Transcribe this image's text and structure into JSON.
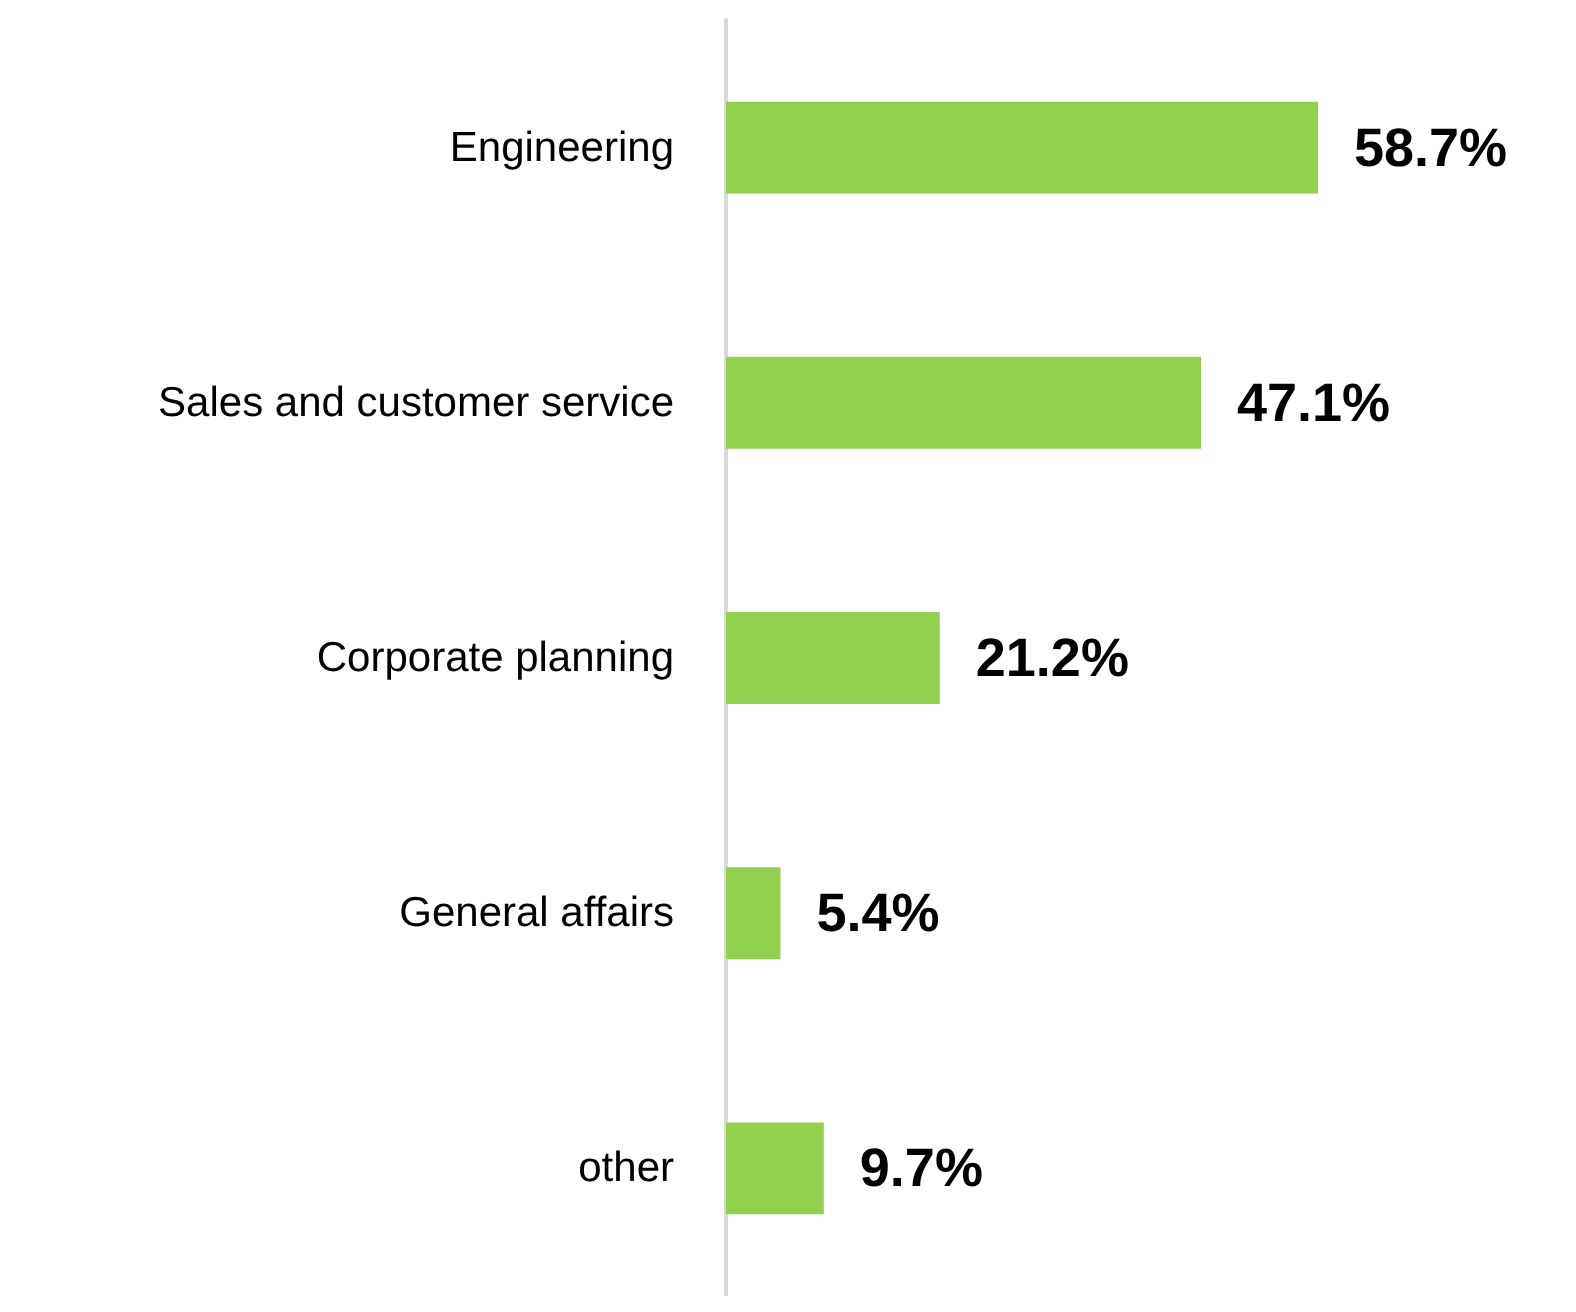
{
  "chart_data": {
    "type": "bar",
    "orientation": "horizontal",
    "categories": [
      "Engineering",
      "Sales and customer service",
      "Corporate planning",
      "General affairs",
      "other"
    ],
    "values": [
      58.7,
      47.1,
      21.2,
      5.4,
      9.7
    ],
    "value_labels": [
      "58.7%",
      "47.1%",
      "21.2%",
      "5.4%",
      "9.7%"
    ],
    "color": "#92d050"
  }
}
